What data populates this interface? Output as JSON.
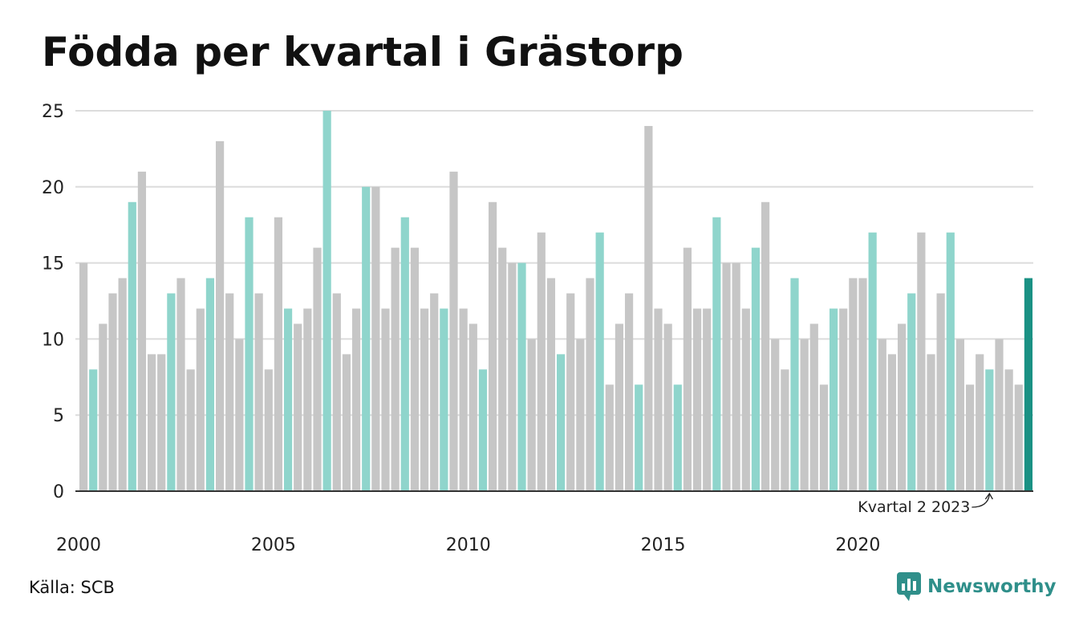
{
  "title": "Födda per kvartal i Grästorp",
  "source": "Källa: SCB",
  "brand": "Newsworthy",
  "colors": {
    "grey": "#c6c6c6",
    "highlight": "#8fd5cc",
    "latest": "#1a9184",
    "grid": "#dcdcdc",
    "brand": "#2f8f8a"
  },
  "chart_data": {
    "type": "bar",
    "title": "Födda per kvartal i Grästorp",
    "ylim": [
      0,
      25
    ],
    "yticks": [
      0,
      5,
      10,
      15,
      20,
      25
    ],
    "xticks": [
      "2000",
      "2005",
      "2010",
      "2015",
      "2020"
    ],
    "start_year": 2000,
    "highlight_quarter": 2,
    "annotation": "Kvartal 2 2023",
    "grid": true,
    "values": [
      15,
      8,
      11,
      13,
      14,
      19,
      21,
      9,
      9,
      13,
      14,
      8,
      12,
      14,
      23,
      13,
      10,
      18,
      13,
      8,
      18,
      12,
      11,
      12,
      16,
      25,
      13,
      9,
      12,
      20,
      20,
      12,
      16,
      18,
      16,
      12,
      13,
      12,
      21,
      12,
      11,
      8,
      19,
      16,
      15,
      15,
      10,
      17,
      14,
      9,
      13,
      10,
      14,
      17,
      7,
      11,
      13,
      7,
      24,
      12,
      11,
      7,
      16,
      12,
      12,
      18,
      15,
      15,
      12,
      16,
      19,
      10,
      8,
      14,
      10,
      11,
      7,
      12,
      12,
      14,
      14,
      17,
      10,
      9,
      11,
      13,
      17,
      9,
      13,
      17,
      10,
      7,
      9,
      8,
      10,
      8,
      7,
      14
    ]
  }
}
